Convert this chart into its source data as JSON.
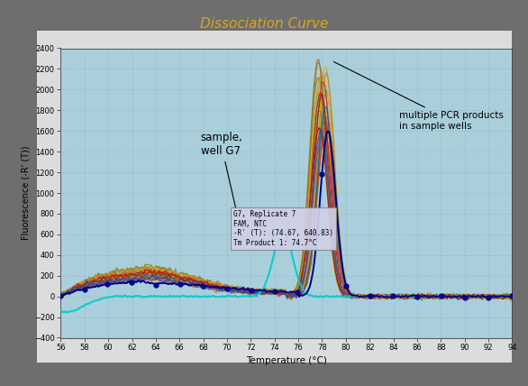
{
  "title": "Dissociation Curve",
  "title_color": "#DAA520",
  "xlabel": "Temperature (°C)",
  "ylabel": "Fluorescence (-R' (T))",
  "xlim": [
    56,
    94
  ],
  "ylim": [
    -400,
    2400
  ],
  "xticks": [
    56,
    58,
    60,
    62,
    64,
    66,
    68,
    70,
    72,
    74,
    76,
    78,
    80,
    82,
    84,
    86,
    88,
    90,
    92,
    94
  ],
  "yticks": [
    -400,
    -200,
    0,
    200,
    400,
    600,
    800,
    1000,
    1200,
    1400,
    1600,
    1800,
    2000,
    2200,
    2400
  ],
  "plot_bg_color": "#AACFDB",
  "outer_bg": "#6E6E6E",
  "inner_bg": "#DCDCDC",
  "annotation_box_text": "G7, Replicate 7\nFAM, NTC\n-R' (T): (74.67, 640.83)\nTm Product 1: 74.7°C",
  "annotation_sample": "sample,\nwell G7",
  "annotation_multiple": "multiple PCR products\nin sample wells"
}
